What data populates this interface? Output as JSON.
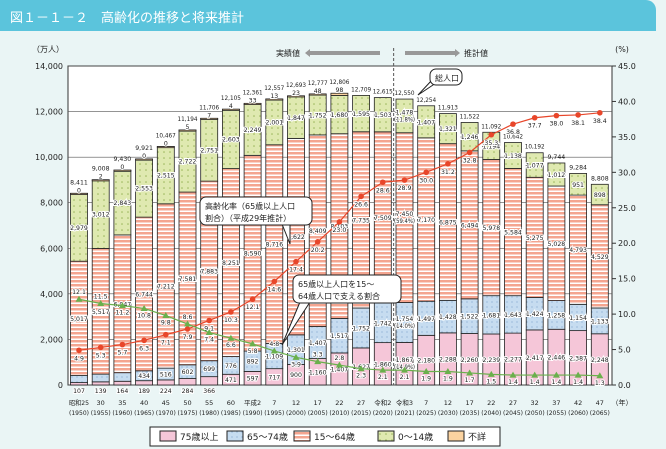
{
  "title": "図１－１－２　高齢化の推移と将来推計",
  "chart_data": {
    "type": "bar",
    "stacked": true,
    "left_axis_unit": "（万人）",
    "right_axis_unit": "(%)",
    "ylim": [
      0,
      14000
    ],
    "y2lim": [
      0,
      45
    ],
    "yticks": [
      "0",
      "2,000",
      "4,000",
      "6,000",
      "8,000",
      "10,000",
      "12,000",
      "14,000"
    ],
    "y2ticks": [
      "0.0",
      "5.0",
      "10.0",
      "15.0",
      "20.0",
      "25.0",
      "30.0",
      "35.0",
      "40.0",
      "45.0"
    ],
    "x_unit": "（年）",
    "categories_era": [
      "昭和25",
      "30",
      "35",
      "40",
      "45",
      "50",
      "55",
      "60",
      "平成2",
      "7",
      "12",
      "17",
      "22",
      "27",
      "令和2",
      "令和3",
      "7",
      "12",
      "17",
      "22",
      "27",
      "32",
      "37",
      "42",
      "47"
    ],
    "categories": [
      "(1950)",
      "(1955)",
      "(1960)",
      "(1965)",
      "(1970)",
      "(1975)",
      "(1980)",
      "(1985)",
      "(1990)",
      "(1995)",
      "(2000)",
      "(2005)",
      "(2010)",
      "(2015)",
      "(2020)",
      "(2021)",
      "(2025)",
      "(2030)",
      "(2035)",
      "(2040)",
      "(2045)",
      "(2050)",
      "(2055)",
      "(2060)",
      "(2065)"
    ],
    "series": [
      {
        "name": "75歳以上",
        "color": "#f5c6d8",
        "values": [
          107,
          139,
          164,
          189,
          224,
          284,
          366,
          471,
          597,
          717,
          900,
          1160,
          1407,
          1627,
          1860,
          1867,
          2180,
          2288,
          2260,
          2239,
          2277,
          2417,
          2446,
          2387,
          2248
        ]
      },
      {
        "name": "65～74歳",
        "color": "#c6dcf0",
        "values": [
          309,
          338,
          376,
          434,
          516,
          602,
          699,
          776,
          892,
          1109,
          1301,
          1407,
          1517,
          1752,
          1742,
          1754,
          1497,
          1428,
          1522,
          1681,
          1643,
          1424,
          1258,
          1154,
          1133
        ]
      },
      {
        "name": "15～64歳",
        "color": "#f4a590",
        "values": [
          5017,
          5517,
          6047,
          6744,
          7212,
          7581,
          7883,
          8251,
          8590,
          8716,
          8622,
          8409,
          8103,
          7735,
          7509,
          7450,
          7170,
          6875,
          6494,
          5978,
          5584,
          5275,
          5028,
          4793,
          4529
        ]
      },
      {
        "name": "0～14歳",
        "color": "#dfe9b0",
        "values": [
          2979,
          3012,
          2843,
          2553,
          2515,
          2722,
          2751,
          2603,
          2249,
          2001,
          1847,
          1752,
          1680,
          1595,
          1503,
          1478,
          1407,
          1321,
          1246,
          1194,
          1138,
          1077,
          1012,
          951,
          898
        ]
      },
      {
        "name": "不詳",
        "color": "#fbd3a0",
        "values": [
          0,
          2,
          0,
          0,
          0,
          5,
          7,
          4,
          33,
          13,
          23,
          48,
          98,
          null,
          null,
          null,
          null,
          null,
          null,
          null,
          null,
          null,
          null,
          null,
          null
        ]
      }
    ],
    "totals": [
      "8,411",
      "9,008",
      "9,430",
      "9,921",
      "10,467",
      "11,194",
      "11,706",
      "12,105",
      "12,361",
      "12,557",
      "12,693",
      "12,777",
      "12,806",
      "12,709",
      "12,615",
      "12,550",
      "12,254",
      "11,913",
      "11,522",
      "11,092",
      "10,642",
      "10,192",
      "9,744",
      "9,284",
      "8,808"
    ],
    "lines": [
      {
        "name": "高齢化率",
        "color": "#e8462a",
        "marker": "circle",
        "values": [
          4.9,
          5.3,
          5.7,
          6.3,
          7.1,
          7.9,
          9.1,
          10.3,
          12.1,
          14.6,
          17.4,
          20.2,
          23.0,
          26.6,
          28.6,
          28.9,
          30.0,
          31.2,
          32.8,
          35.3,
          36.8,
          37.7,
          38.0,
          38.1,
          38.4
        ]
      },
      {
        "name": "65歳以上人口を15～64歳人口で支える割合",
        "color": "#6ab04c",
        "marker": "triangle",
        "values": [
          12.1,
          11.5,
          11.2,
          10.8,
          9.8,
          8.6,
          7.4,
          6.6,
          5.8,
          4.8,
          3.9,
          3.3,
          2.8,
          2.3,
          2.1,
          2.1,
          1.9,
          1.9,
          1.7,
          1.5,
          1.4,
          1.4,
          1.4,
          1.4,
          1.3
        ]
      }
    ],
    "annotations_2021": [
      "(11.8%)",
      "(59.4%)",
      "(14.0%)",
      "(14.9%)"
    ],
    "actual_label": "実績値",
    "projection_label": "推計値",
    "callout_total": "総人口",
    "callout_aging_1": "高齢化率（65歳以上人口",
    "callout_aging_2": "割合）（平成29年推計）",
    "callout_support_1": "65歳以上人口を15～",
    "callout_support_2": "64歳人口で支える割合",
    "legend": [
      "75歳以上",
      "65～74歳",
      "15～64歳",
      "0～14歳",
      "不詳"
    ],
    "legend_placement": "bottom"
  }
}
